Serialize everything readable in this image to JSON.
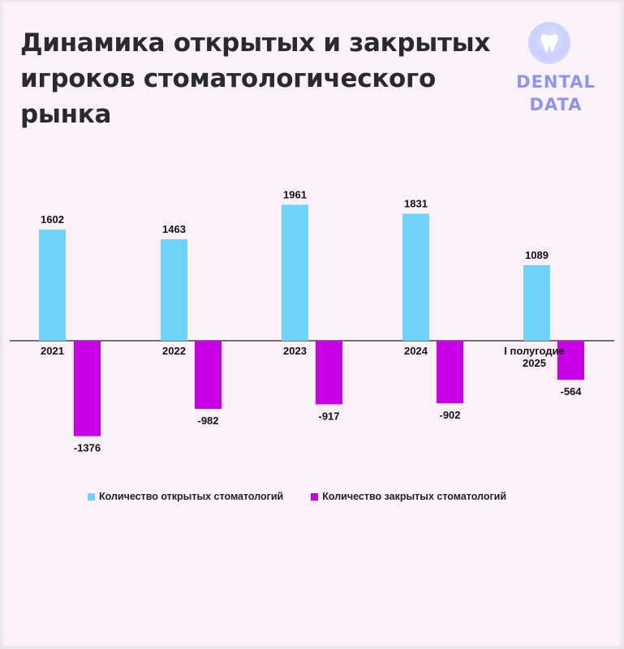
{
  "header": {
    "title": "Динамика открытых и закрытых игроков стоматологического рынка"
  },
  "logo": {
    "line1": "DENTAL",
    "line2": "DATA",
    "icon": "tooth-icon"
  },
  "colors": {
    "opened": "#6dd3fb",
    "closed": "#c800e6",
    "background": "#fdf1f9"
  },
  "chart_data": {
    "type": "bar",
    "categories": [
      "2021",
      "2022",
      "2023",
      "2024",
      "I полугодие 2025"
    ],
    "series": [
      {
        "name": "Количество открытых стоматологий",
        "values": [
          1602,
          1463,
          1961,
          1831,
          1089
        ]
      },
      {
        "name": "Количество закрытых стоматологий",
        "values": [
          -1376,
          -982,
          -917,
          -902,
          -564
        ]
      }
    ],
    "value_labels": {
      "opened": [
        "1602",
        "1463",
        "1961",
        "1831",
        "1089"
      ],
      "closed": [
        "-1376",
        "-982",
        "-917",
        "-902",
        "-564"
      ]
    },
    "category_labels": [
      [
        "2021"
      ],
      [
        "2022"
      ],
      [
        "2023"
      ],
      [
        "2024"
      ],
      [
        "I полугодие",
        "2025"
      ]
    ],
    "title": "Динамика открытых и закрытых игроков стоматологического рынка",
    "xlabel": "",
    "ylabel": "",
    "grid": false,
    "legend_position": "bottom"
  }
}
